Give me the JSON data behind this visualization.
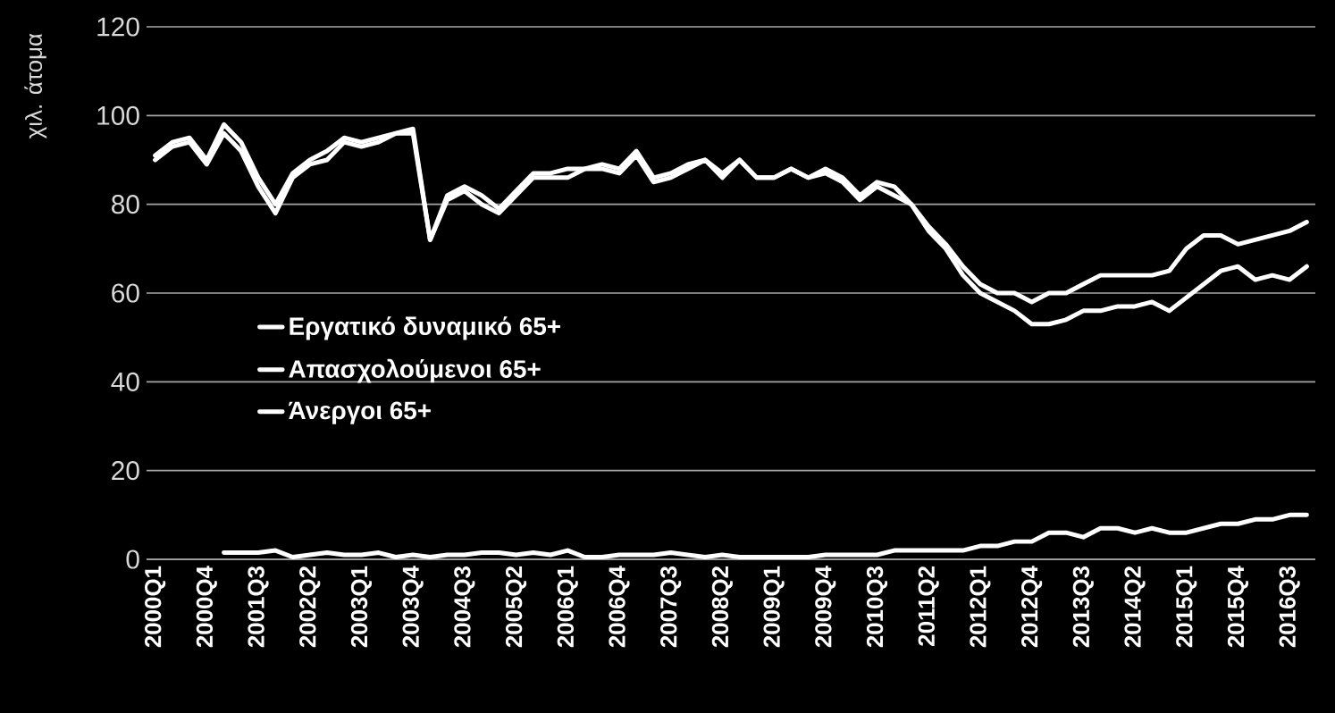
{
  "chart_data": {
    "type": "line",
    "ylabel": "χιλ. άτομα",
    "categories": [
      "2000Q1",
      null,
      null,
      "2000Q4",
      null,
      null,
      "2001Q3",
      null,
      null,
      "2002Q2",
      null,
      null,
      "2003Q1",
      null,
      null,
      "2003Q4",
      null,
      null,
      "2004Q3",
      null,
      null,
      "2005Q2",
      null,
      null,
      "2006Q1",
      null,
      null,
      "2006Q4",
      null,
      null,
      "2007Q3",
      null,
      null,
      "2008Q2",
      null,
      null,
      "2009Q1",
      null,
      null,
      "2009Q4",
      null,
      null,
      "2010Q3",
      null,
      null,
      "2011Q2",
      null,
      null,
      "2012Q1",
      null,
      null,
      "2012Q4",
      null,
      null,
      "2013Q3",
      null,
      null,
      "2014Q2",
      null,
      null,
      "2015Q1",
      null,
      null,
      "2015Q4",
      null,
      null,
      "2016Q3",
      null
    ],
    "series": [
      {
        "name": "Εργατικό δυναμικό 65+",
        "color": "#ffffff",
        "values": [
          91,
          94,
          95,
          90,
          98,
          94,
          86,
          80,
          87,
          90,
          92,
          95,
          94,
          95,
          96,
          97,
          72,
          82,
          84,
          82,
          79,
          83,
          87,
          87,
          88,
          88,
          89,
          88,
          92,
          86,
          87,
          89,
          90,
          87,
          90,
          86,
          86,
          88,
          86,
          88,
          86,
          82,
          85,
          84,
          80,
          75,
          71,
          66,
          62,
          60,
          60,
          58,
          60,
          60,
          62,
          64,
          64,
          64,
          64,
          65,
          70,
          73,
          73,
          71,
          72,
          73,
          74,
          76
        ]
      },
      {
        "name": "Απασχολούμενοι 65+",
        "color": "#ffffff",
        "values": [
          90,
          93,
          94,
          89,
          96,
          92,
          84,
          78,
          86,
          89,
          90,
          94,
          93,
          94,
          96,
          96,
          72,
          81,
          83,
          80,
          78,
          82,
          86,
          86,
          86,
          88,
          88,
          87,
          91,
          85,
          86,
          88,
          90,
          86,
          90,
          86,
          86,
          88,
          86,
          87,
          85,
          81,
          84,
          82,
          80,
          74,
          70,
          64,
          60,
          58,
          56,
          53,
          53,
          54,
          56,
          56,
          57,
          57,
          58,
          56,
          59,
          62,
          65,
          66,
          63,
          64,
          63,
          66
        ]
      },
      {
        "name": "Άνεργοι 65+",
        "color": "#ffffff",
        "values": [
          null,
          null,
          null,
          null,
          1.5,
          1.5,
          1.5,
          2,
          0.5,
          1,
          1.5,
          1,
          1,
          1.5,
          0.5,
          1,
          0.5,
          1,
          1,
          1.5,
          1.5,
          1,
          1.5,
          1,
          2,
          0.5,
          0.5,
          1,
          1,
          1,
          1.5,
          1,
          0.5,
          1,
          0.5,
          0.5,
          0.5,
          0.5,
          0.5,
          1,
          1,
          1,
          1,
          2,
          2,
          2,
          2,
          2,
          3,
          3,
          4,
          4,
          6,
          6,
          5,
          7,
          7,
          6,
          7,
          6,
          6,
          7,
          8,
          8,
          9,
          9,
          10,
          10
        ]
      }
    ],
    "ylim": [
      0,
      120
    ],
    "yticks": [
      0,
      20,
      40,
      60,
      80,
      100,
      120
    ],
    "grid": "y",
    "legend": "left",
    "marker": "none",
    "line_style": "solid"
  }
}
